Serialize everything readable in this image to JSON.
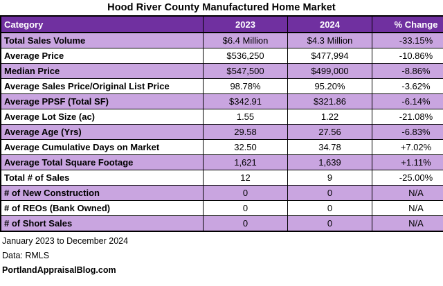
{
  "title": "Hood River County Manufactured Home Market",
  "colors": {
    "header_bg": "#7030A0",
    "header_text": "#FFFFFF",
    "stripe_bg": "#C9A5E0",
    "row_bg": "#FFFFFF",
    "border": "#000000",
    "text": "#000000"
  },
  "table": {
    "columns": [
      "Category",
      "2023",
      "2024",
      "% Change"
    ],
    "rows": [
      {
        "category": "Total Sales Volume",
        "y2023": "$6.4 Million",
        "y2024": "$4.3 Million",
        "change": "-33.15%"
      },
      {
        "category": "Average Price",
        "y2023": "$536,250",
        "y2024": "$477,994",
        "change": "-10.86%"
      },
      {
        "category": "Median Price",
        "y2023": "$547,500",
        "y2024": "$499,000",
        "change": "-8.86%"
      },
      {
        "category": "Average Sales Price/Original List Price",
        "y2023": "98.78%",
        "y2024": "95.20%",
        "change": "-3.62%"
      },
      {
        "category": "Average PPSF (Total SF)",
        "y2023": "$342.91",
        "y2024": "$321.86",
        "change": "-6.14%"
      },
      {
        "category": "Average Lot Size (ac)",
        "y2023": "1.55",
        "y2024": "1.22",
        "change": "-21.08%"
      },
      {
        "category": "Average Age (Yrs)",
        "y2023": "29.58",
        "y2024": "27.56",
        "change": "-6.83%"
      },
      {
        "category": "Average Cumulative Days on Market",
        "y2023": "32.50",
        "y2024": "34.78",
        "change": "+7.02%"
      },
      {
        "category": "Average Total Square Footage",
        "y2023": "1,621",
        "y2024": "1,639",
        "change": "+1.11%"
      },
      {
        "category": "Total # of Sales",
        "y2023": "12",
        "y2024": "9",
        "change": "-25.00%"
      },
      {
        "category": "# of New Construction",
        "y2023": "0",
        "y2024": "0",
        "change": "N/A"
      },
      {
        "category": "# of REOs (Bank Owned)",
        "y2023": "0",
        "y2024": "0",
        "change": "N/A"
      },
      {
        "category": "# of Short Sales",
        "y2023": "0",
        "y2024": "0",
        "change": "N/A"
      }
    ]
  },
  "footer": {
    "date_range": "January 2023 to December 2024",
    "data_source": "Data: RMLS",
    "site": "PortlandAppraisalBlog.com"
  },
  "chart_data": {
    "type": "table",
    "title": "Hood River County Manufactured Home Market",
    "categories": [
      "Total Sales Volume",
      "Average Price",
      "Median Price",
      "Average Sales Price/Original List Price",
      "Average PPSF (Total SF)",
      "Average Lot Size (ac)",
      "Average Age (Yrs)",
      "Average Cumulative Days on Market",
      "Average Total Square Footage",
      "Total # of Sales",
      "# of New Construction",
      "# of REOs (Bank Owned)",
      "# of Short Sales"
    ],
    "series": [
      {
        "name": "2023",
        "values": [
          "$6.4 Million",
          "$536,250",
          "$547,500",
          "98.78%",
          "$342.91",
          "1.55",
          "29.58",
          "32.50",
          "1,621",
          "12",
          "0",
          "0",
          "0"
        ]
      },
      {
        "name": "2024",
        "values": [
          "$4.3 Million",
          "$477,994",
          "$499,000",
          "95.20%",
          "$321.86",
          "1.22",
          "27.56",
          "34.78",
          "1,639",
          "9",
          "0",
          "0",
          "0"
        ]
      },
      {
        "name": "% Change",
        "values": [
          "-33.15%",
          "-10.86%",
          "-8.86%",
          "-3.62%",
          "-6.14%",
          "-21.08%",
          "-6.83%",
          "+7.02%",
          "+1.11%",
          "-25.00%",
          "N/A",
          "N/A",
          "N/A"
        ]
      }
    ]
  }
}
